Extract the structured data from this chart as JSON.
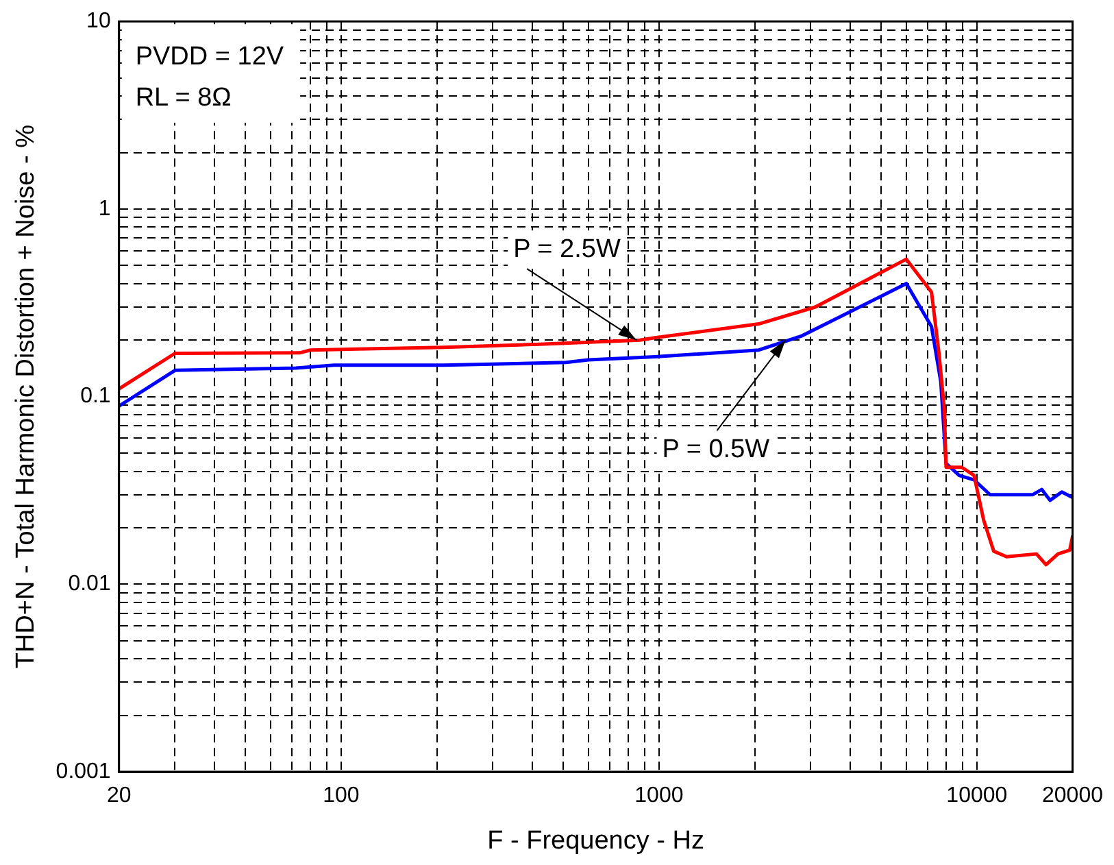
{
  "chart_data": {
    "type": "line",
    "xlabel": "F - Frequency - Hz",
    "ylabel": "THD+N - Total Harmonic Distortion + Noise - %",
    "log": "xy",
    "grid": true,
    "legend": false,
    "marker": "none",
    "line_style": "solid",
    "xlim": [
      20,
      20000
    ],
    "ylim": [
      0.001,
      10
    ],
    "xticks": [
      20,
      {
        "value": 30,
        "label": null
      },
      {
        "value": 40,
        "label": null
      },
      {
        "value": 50,
        "label": null
      },
      {
        "value": 60,
        "label": null
      },
      {
        "value": 70,
        "label": null
      },
      {
        "value": 80,
        "label": null
      },
      {
        "value": 90,
        "label": null
      },
      100,
      {
        "value": 200,
        "label": null
      },
      {
        "value": 300,
        "label": null
      },
      {
        "value": 400,
        "label": null
      },
      {
        "value": 500,
        "label": null
      },
      {
        "value": 600,
        "label": null
      },
      {
        "value": 700,
        "label": null
      },
      {
        "value": 800,
        "label": null
      },
      {
        "value": 900,
        "label": null
      },
      1000,
      {
        "value": 2000,
        "label": null
      },
      {
        "value": 3000,
        "label": null
      },
      {
        "value": 4000,
        "label": null
      },
      {
        "value": 5000,
        "label": null
      },
      {
        "value": 6000,
        "label": null
      },
      {
        "value": 7000,
        "label": null
      },
      {
        "value": 8000,
        "label": null
      },
      {
        "value": 9000,
        "label": null
      },
      10000,
      20000
    ],
    "yticks": [
      0.001,
      {
        "value": 0.002,
        "label": null
      },
      {
        "value": 0.003,
        "label": null
      },
      {
        "value": 0.004,
        "label": null
      },
      {
        "value": 0.005,
        "label": null
      },
      {
        "value": 0.006,
        "label": null
      },
      {
        "value": 0.007,
        "label": null
      },
      {
        "value": 0.008,
        "label": null
      },
      {
        "value": 0.009,
        "label": null
      },
      0.01,
      {
        "value": 0.02,
        "label": null
      },
      {
        "value": 0.03,
        "label": null
      },
      {
        "value": 0.04,
        "label": null
      },
      {
        "value": 0.05,
        "label": null
      },
      {
        "value": 0.06,
        "label": null
      },
      {
        "value": 0.07,
        "label": null
      },
      {
        "value": 0.08,
        "label": null
      },
      {
        "value": 0.09,
        "label": null
      },
      0.1,
      {
        "value": 0.2,
        "label": null
      },
      {
        "value": 0.3,
        "label": null
      },
      {
        "value": 0.4,
        "label": null
      },
      {
        "value": 0.5,
        "label": null
      },
      {
        "value": 0.6,
        "label": null
      },
      {
        "value": 0.7,
        "label": null
      },
      {
        "value": 0.8,
        "label": null
      },
      {
        "value": 0.9,
        "label": null
      },
      1,
      {
        "value": 2,
        "label": null
      },
      {
        "value": 3,
        "label": null
      },
      {
        "value": 4,
        "label": null
      },
      {
        "value": 5,
        "label": null
      },
      {
        "value": 6,
        "label": null
      },
      {
        "value": 7,
        "label": null
      },
      {
        "value": 8,
        "label": null
      },
      {
        "value": 9,
        "label": null
      },
      10
    ],
    "series": [
      {
        "color": "#ff0000",
        "x": [
          20,
          30,
          74,
          80,
          210,
          420,
          870,
          970,
          2060,
          3100,
          6000,
          7200,
          7600,
          7900,
          8000,
          8960,
          9800,
          10500,
          11300,
          12400,
          15400,
          16500,
          18000,
          19600,
          20000
        ],
        "values": [
          0.11,
          0.17,
          0.171,
          0.177,
          0.183,
          0.19,
          0.2,
          0.206,
          0.244,
          0.3,
          0.54,
          0.36,
          0.17,
          0.086,
          0.042,
          0.042,
          0.038,
          0.022,
          0.015,
          0.014,
          0.0145,
          0.0127,
          0.0145,
          0.0152,
          0.018
        ]
      },
      {
        "color": "#0000ff",
        "x": [
          20,
          30,
          72,
          95,
          210,
          510,
          600,
          970,
          2060,
          2800,
          6000,
          7200,
          7700,
          8000,
          8800,
          9800,
          11000,
          13000,
          15000,
          16000,
          17000,
          18500,
          20000
        ],
        "values": [
          0.089,
          0.138,
          0.142,
          0.147,
          0.147,
          0.152,
          0.157,
          0.163,
          0.177,
          0.21,
          0.4,
          0.236,
          0.12,
          0.044,
          0.038,
          0.036,
          0.03,
          0.03,
          0.03,
          0.032,
          0.028,
          0.031,
          0.029
        ]
      }
    ],
    "annotations": [
      "PVDD = 12V",
      "RL = 8Ω",
      {
        "text": "P = 2.5W",
        "x": 850,
        "y": 0.2
      },
      {
        "text": "P = 0.5W",
        "x": 2500,
        "y": 0.2
      }
    ]
  }
}
